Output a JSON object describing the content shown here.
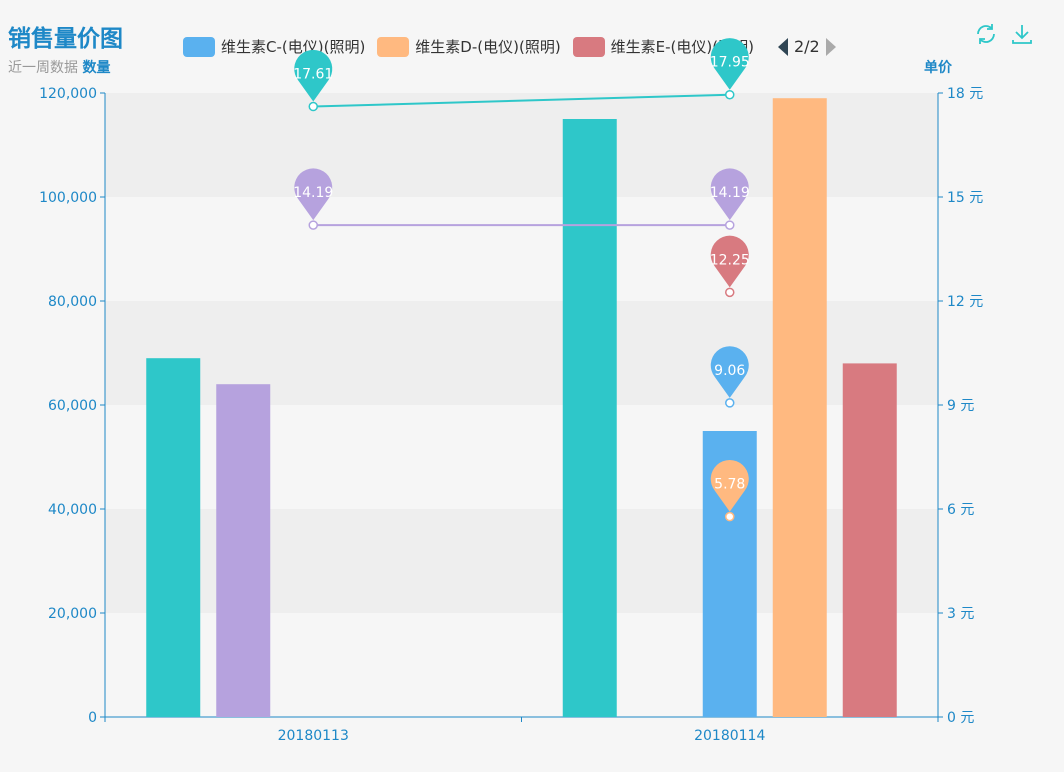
{
  "title": "销售量价图",
  "subtitle": {
    "text": "近一周数据",
    "strong": "数量"
  },
  "right_axis_name": "单价",
  "legend": {
    "items": [
      {
        "label": "维生素C-(电仪)(照明)",
        "color": "#5ab1ef"
      },
      {
        "label": "维生素D-(电仪)(照明)",
        "color": "#ffb980"
      },
      {
        "label": "维生素E-(电仪)(照明)",
        "color": "#d87a80"
      }
    ],
    "page": "2/2"
  },
  "toolbox": {
    "refresh_icon": "refresh-icon",
    "download_icon": "download-icon",
    "color": "#2ec7c9"
  },
  "chart_data": {
    "type": "bar",
    "categories": [
      "20180113",
      "20180114"
    ],
    "left_axis": {
      "name": "数量",
      "ticks": [
        "0",
        "20,000",
        "40,000",
        "60,000",
        "80,000",
        "100,000",
        "120,000"
      ],
      "ylim": [
        0,
        120000
      ]
    },
    "right_axis": {
      "name": "单价",
      "ticks": [
        "0 元",
        "3 元",
        "6 元",
        "9 元",
        "12 元",
        "15 元",
        "18 元"
      ],
      "ylim": [
        0,
        18
      ]
    },
    "bar_series": [
      {
        "color": "#2ec7c9",
        "values": [
          69000,
          115000
        ]
      },
      {
        "color": "#b6a2de",
        "values": [
          64000,
          null
        ]
      },
      {
        "color": "#5ab1ef",
        "values": [
          null,
          55000
        ]
      },
      {
        "color": "#ffb980",
        "values": [
          null,
          119000
        ]
      },
      {
        "color": "#d87a80",
        "values": [
          null,
          68000
        ]
      }
    ],
    "line_series": [
      {
        "color": "#2ec7c9",
        "values": [
          17.61,
          17.95
        ],
        "labels": [
          "17.61",
          "17.95"
        ]
      },
      {
        "color": "#b6a2de",
        "values": [
          14.19,
          14.19
        ],
        "labels": [
          "14.19",
          "14.19"
        ]
      },
      {
        "color": "#5ab1ef",
        "values": [
          null,
          9.06
        ],
        "labels": [
          null,
          "9.06"
        ]
      },
      {
        "color": "#ffb980",
        "values": [
          null,
          5.78
        ],
        "labels": [
          null,
          "5.78"
        ]
      },
      {
        "color": "#d87a80",
        "values": [
          null,
          12.25
        ],
        "labels": [
          null,
          "12.25"
        ]
      }
    ]
  }
}
